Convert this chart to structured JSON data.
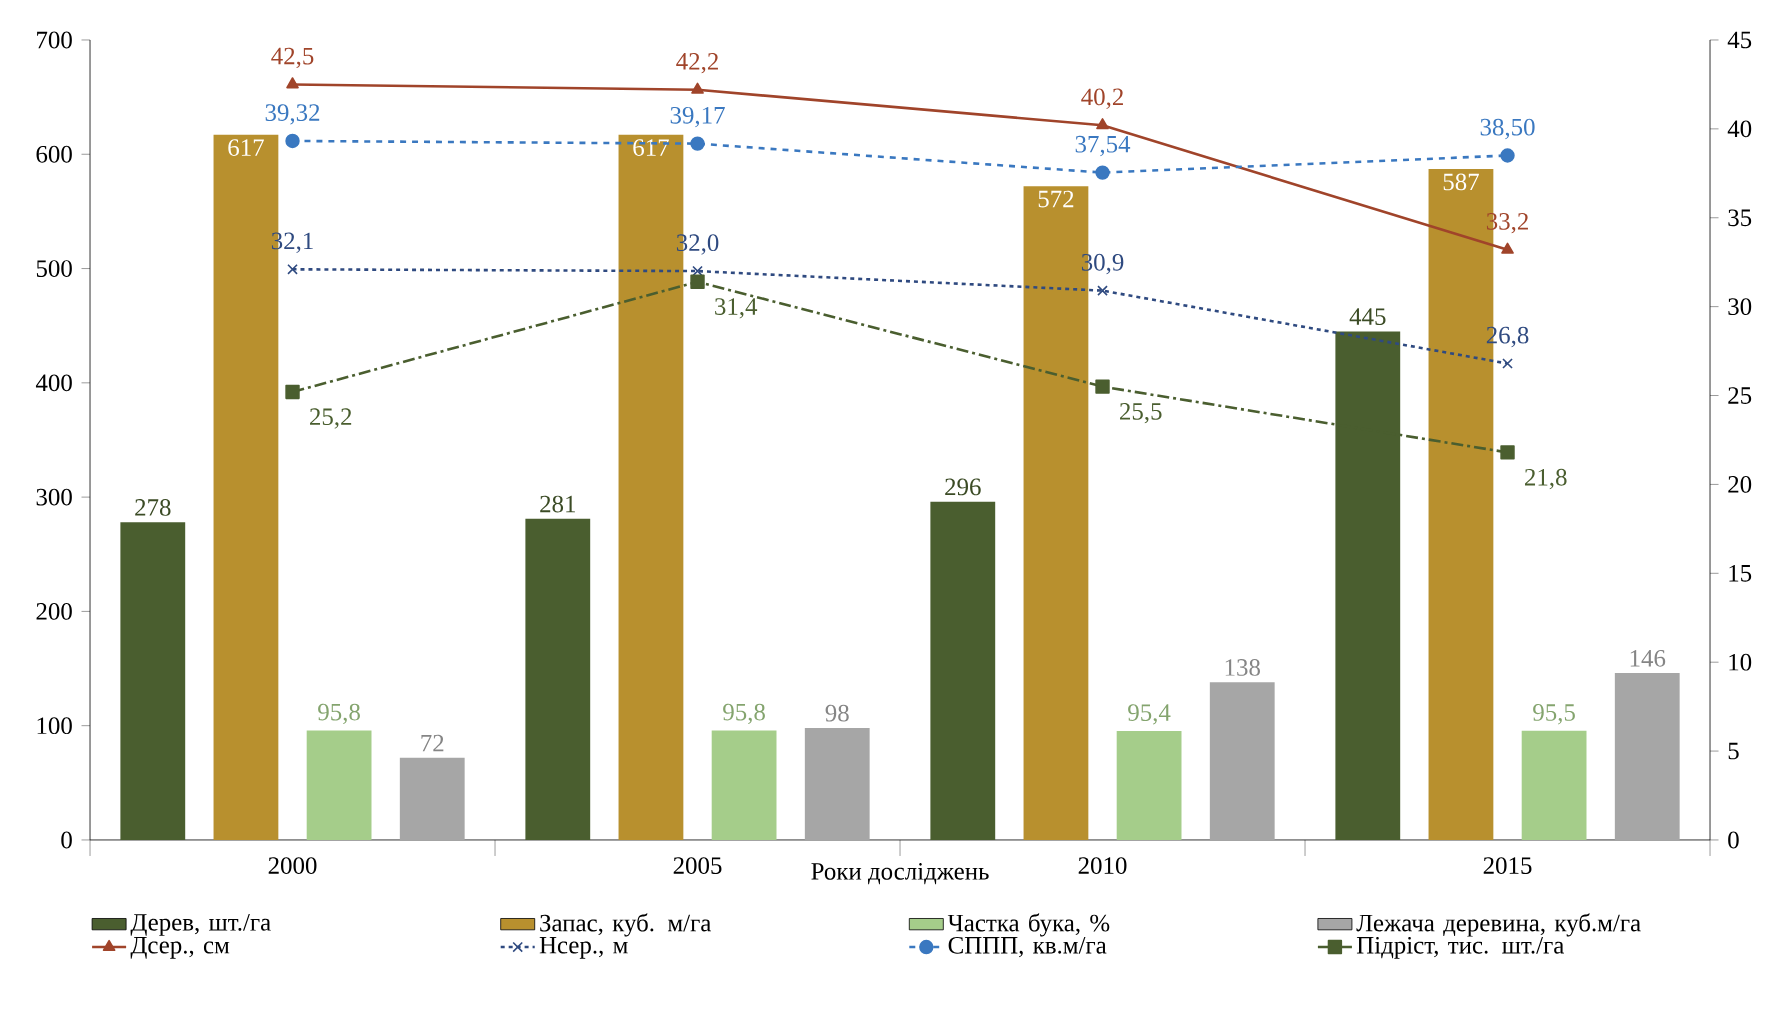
{
  "chart_data": {
    "type": "bar",
    "xlabel": "Роки досліджень",
    "categories": [
      "2000",
      "2005",
      "2010",
      "2015"
    ],
    "ylim": [
      0,
      700
    ],
    "yticks": [
      0,
      100,
      200,
      300,
      400,
      500,
      600,
      700
    ],
    "y2lim": [
      0,
      45
    ],
    "y2ticks": [
      0,
      5,
      10,
      15,
      20,
      25,
      30,
      35,
      40,
      45
    ],
    "legend": "bottom",
    "grid": false,
    "series": [
      {
        "name": "Дерев, шт./га",
        "color": "#4a5e2f",
        "values": [
          278,
          281,
          296,
          445
        ],
        "value_labels": [
          "278",
          "281",
          "296",
          "445"
        ]
      },
      {
        "name": "Запас, куб. м/га",
        "color": "#b8902e",
        "values": [
          617,
          617,
          572,
          587
        ],
        "value_labels": [
          "617",
          "617",
          "572",
          "587"
        ]
      },
      {
        "name": "Частка бука, %",
        "color": "#a5cd8a",
        "values": [
          95.8,
          95.8,
          95.4,
          95.5
        ],
        "value_labels": [
          "95,8",
          "95,8",
          "95,4",
          "95,5"
        ]
      },
      {
        "name": "Лежача деревина, куб.м/га",
        "color": "#a6a6a6",
        "values": [
          72,
          98,
          138,
          146
        ],
        "value_labels": [
          "72",
          "98",
          "138",
          "146"
        ]
      },
      {
        "name": "Дсер., см",
        "type": "line",
        "axis": "y2",
        "color": "#a0442a",
        "marker": "triangle",
        "line_style": "solid",
        "values": [
          42.5,
          42.2,
          40.2,
          33.2
        ],
        "value_labels": [
          "42,5",
          "42,2",
          "40,2",
          "33,2"
        ]
      },
      {
        "name": "Нсер., м",
        "type": "line",
        "axis": "y2",
        "color": "#2f4a80",
        "marker": "cross",
        "line_style": "dotted",
        "values": [
          32.1,
          32.0,
          30.9,
          26.8
        ],
        "value_labels": [
          "32,1",
          "32,0",
          "30,9",
          "26,8"
        ]
      },
      {
        "name": "СППП, кв.м/га",
        "type": "line",
        "axis": "y2",
        "color": "#3a78c0",
        "marker": "circle",
        "line_style": "dashed",
        "values": [
          39.32,
          39.17,
          37.54,
          38.5
        ],
        "value_labels": [
          "39,32",
          "39,17",
          "37,54",
          "38,50"
        ]
      },
      {
        "name": "Підріст, тис. шт./га",
        "type": "line",
        "axis": "y2",
        "color": "#4a5e2f",
        "marker": "square",
        "line_style": "dashdot",
        "values": [
          25.2,
          31.4,
          25.5,
          21.8
        ],
        "value_labels": [
          "25,2",
          "31,4",
          "25,5",
          "21,8"
        ]
      }
    ]
  }
}
